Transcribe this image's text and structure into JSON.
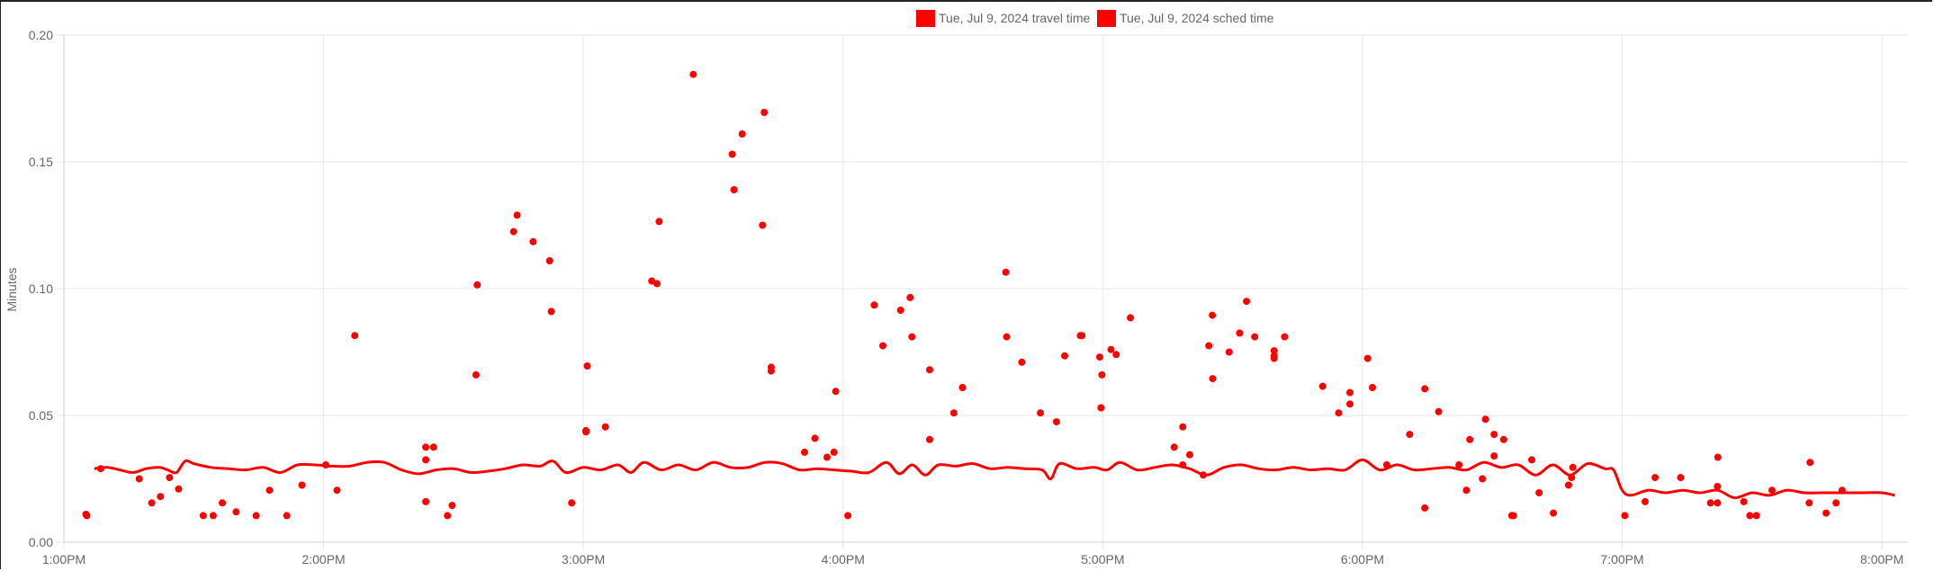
{
  "chart_data": {
    "type": "scatter",
    "title": "",
    "xlabel": "",
    "ylabel": "Minutes",
    "x_domain_minutes": [
      780,
      1206
    ],
    "ylim": [
      0,
      0.2
    ],
    "x_ticks": [
      {
        "label": "1:00PM",
        "value": 780
      },
      {
        "label": "2:00PM",
        "value": 840
      },
      {
        "label": "3:00PM",
        "value": 900
      },
      {
        "label": "4:00PM",
        "value": 960
      },
      {
        "label": "5:00PM",
        "value": 1020
      },
      {
        "label": "6:00PM",
        "value": 1080
      },
      {
        "label": "7:00PM",
        "value": 1140
      },
      {
        "label": "8:00PM",
        "value": 1200
      }
    ],
    "y_ticks": [
      "0.00",
      "0.05",
      "0.10",
      "0.15",
      "0.20"
    ],
    "y_tick_values": [
      0,
      0.05,
      0.1,
      0.15,
      0.2
    ],
    "grid": true,
    "legend_position": "top-center",
    "series": [
      {
        "name": "Tue, Jul 9, 2024 travel time",
        "color": "#ff0000",
        "kind": "points",
        "points": [
          [
            785.1,
            0.011
          ],
          [
            785.3,
            0.0105
          ],
          [
            788.5,
            0.029
          ],
          [
            797.4,
            0.025
          ],
          [
            800.3,
            0.0155
          ],
          [
            802.3,
            0.018
          ],
          [
            804.4,
            0.0255
          ],
          [
            806.5,
            0.021
          ],
          [
            812.2,
            0.0105
          ],
          [
            814.5,
            0.0105
          ],
          [
            816.6,
            0.0155
          ],
          [
            819.8,
            0.012
          ],
          [
            824.4,
            0.0105
          ],
          [
            827.5,
            0.0205
          ],
          [
            831.5,
            0.0105
          ],
          [
            835.0,
            0.0225
          ],
          [
            840.5,
            0.0305
          ],
          [
            843.1,
            0.0205
          ],
          [
            847.2,
            0.0815
          ],
          [
            863.6,
            0.016
          ],
          [
            863.6,
            0.0325
          ],
          [
            863.6,
            0.0375
          ],
          [
            865.4,
            0.0375
          ],
          [
            868.6,
            0.0105
          ],
          [
            869.7,
            0.0145
          ],
          [
            875.2,
            0.066
          ],
          [
            875.5,
            0.1015
          ],
          [
            883.9,
            0.1225
          ],
          [
            884.7,
            0.129
          ],
          [
            888.4,
            0.1185
          ],
          [
            892.2,
            0.111
          ],
          [
            892.6,
            0.091
          ],
          [
            897.3,
            0.0155
          ],
          [
            900.6,
            0.0435
          ],
          [
            900.6,
            0.044
          ],
          [
            900.9,
            0.0695
          ],
          [
            905.1,
            0.0455
          ],
          [
            915.8,
            0.103
          ],
          [
            917.0,
            0.102
          ],
          [
            917.5,
            0.1265
          ],
          [
            925.4,
            0.1845
          ],
          [
            934.4,
            0.153
          ],
          [
            934.8,
            0.139
          ],
          [
            936.7,
            0.161
          ],
          [
            941.4,
            0.125
          ],
          [
            941.8,
            0.1695
          ],
          [
            943.4,
            0.0675
          ],
          [
            943.4,
            0.069
          ],
          [
            951.1,
            0.0355
          ],
          [
            953.5,
            0.041
          ],
          [
            956.3,
            0.0335
          ],
          [
            957.9,
            0.0355
          ],
          [
            958.3,
            0.0595
          ],
          [
            961.1,
            0.0105
          ],
          [
            967.2,
            0.0935
          ],
          [
            969.2,
            0.0775
          ],
          [
            973.3,
            0.0915
          ],
          [
            975.5,
            0.0965
          ],
          [
            975.9,
            0.081
          ],
          [
            980.0,
            0.0405
          ],
          [
            980.0,
            0.068
          ],
          [
            985.6,
            0.051
          ],
          [
            987.6,
            0.061
          ],
          [
            997.6,
            0.1065
          ],
          [
            997.8,
            0.081
          ],
          [
            1001.3,
            0.071
          ],
          [
            1005.6,
            0.051
          ],
          [
            1009.3,
            0.0475
          ],
          [
            1011.2,
            0.0735
          ],
          [
            1014.8,
            0.0815
          ],
          [
            1015.2,
            0.0815
          ],
          [
            1019.3,
            0.073
          ],
          [
            1019.6,
            0.053
          ],
          [
            1019.8,
            0.066
          ],
          [
            1021.9,
            0.076
          ],
          [
            1023.1,
            0.074
          ],
          [
            1026.4,
            0.0885
          ],
          [
            1036.5,
            0.0375
          ],
          [
            1038.5,
            0.0305
          ],
          [
            1038.5,
            0.0455
          ],
          [
            1040.1,
            0.0345
          ],
          [
            1043.2,
            0.0265
          ],
          [
            1044.5,
            0.0775
          ],
          [
            1045.3,
            0.0895
          ],
          [
            1045.4,
            0.0645
          ],
          [
            1049.2,
            0.075
          ],
          [
            1051.6,
            0.0825
          ],
          [
            1053.2,
            0.095
          ],
          [
            1055.1,
            0.081
          ],
          [
            1059.6,
            0.0735
          ],
          [
            1059.6,
            0.0755
          ],
          [
            1059.6,
            0.0725
          ],
          [
            1062.0,
            0.081
          ],
          [
            1070.8,
            0.0615
          ],
          [
            1074.5,
            0.051
          ],
          [
            1077.1,
            0.059
          ],
          [
            1077.1,
            0.0545
          ],
          [
            1081.2,
            0.0725
          ],
          [
            1082.3,
            0.061
          ],
          [
            1085.6,
            0.0305
          ],
          [
            1090.9,
            0.0425
          ],
          [
            1094.4,
            0.0605
          ],
          [
            1094.4,
            0.0135
          ],
          [
            1097.6,
            0.0515
          ],
          [
            1102.3,
            0.0305
          ],
          [
            1104.0,
            0.0205
          ],
          [
            1104.8,
            0.0405
          ],
          [
            1107.7,
            0.025
          ],
          [
            1108.4,
            0.0485
          ],
          [
            1110.4,
            0.034
          ],
          [
            1110.4,
            0.0425
          ],
          [
            1112.6,
            0.0405
          ],
          [
            1114.5,
            0.0105
          ],
          [
            1114.9,
            0.0105
          ],
          [
            1119.1,
            0.0325
          ],
          [
            1120.8,
            0.0195
          ],
          [
            1124.1,
            0.0115
          ],
          [
            1127.6,
            0.0225
          ],
          [
            1128.3,
            0.0255
          ],
          [
            1128.6,
            0.0295
          ],
          [
            1140.6,
            0.0105
          ],
          [
            1145.3,
            0.016
          ],
          [
            1147.6,
            0.0255
          ],
          [
            1153.5,
            0.0255
          ],
          [
            1160.4,
            0.0155
          ],
          [
            1162.0,
            0.0155
          ],
          [
            1162.0,
            0.022
          ],
          [
            1162.1,
            0.0335
          ],
          [
            1168.1,
            0.016
          ],
          [
            1169.5,
            0.0105
          ],
          [
            1171.0,
            0.0105
          ],
          [
            1174.6,
            0.0205
          ],
          [
            1183.2,
            0.0155
          ],
          [
            1183.4,
            0.0315
          ],
          [
            1187.1,
            0.0115
          ],
          [
            1189.4,
            0.0155
          ],
          [
            1190.8,
            0.0205
          ]
        ]
      },
      {
        "name": "Tue, Jul 9, 2024 sched time",
        "color": "#ff0000",
        "kind": "line",
        "points": [
          [
            787,
            0.029
          ],
          [
            790,
            0.0295
          ],
          [
            793,
            0.0285
          ],
          [
            796,
            0.0275
          ],
          [
            799,
            0.029
          ],
          [
            802,
            0.0295
          ],
          [
            804,
            0.0285
          ],
          [
            806,
            0.0275
          ],
          [
            808,
            0.032
          ],
          [
            810,
            0.031
          ],
          [
            814,
            0.0295
          ],
          [
            818,
            0.029
          ],
          [
            822,
            0.0285
          ],
          [
            826,
            0.0295
          ],
          [
            830,
            0.0275
          ],
          [
            834,
            0.0305
          ],
          [
            838,
            0.0305
          ],
          [
            842,
            0.03
          ],
          [
            846,
            0.03
          ],
          [
            850,
            0.0315
          ],
          [
            854,
            0.0315
          ],
          [
            858,
            0.0285
          ],
          [
            862,
            0.027
          ],
          [
            866,
            0.0285
          ],
          [
            870,
            0.029
          ],
          [
            874,
            0.0275
          ],
          [
            878,
            0.028
          ],
          [
            882,
            0.029
          ],
          [
            886,
            0.0305
          ],
          [
            890,
            0.03
          ],
          [
            893,
            0.032
          ],
          [
            896,
            0.0275
          ],
          [
            900,
            0.0295
          ],
          [
            904,
            0.0285
          ],
          [
            908,
            0.0305
          ],
          [
            911,
            0.0275
          ],
          [
            914,
            0.0315
          ],
          [
            918,
            0.0285
          ],
          [
            922,
            0.0305
          ],
          [
            926,
            0.0285
          ],
          [
            930,
            0.0315
          ],
          [
            934,
            0.0295
          ],
          [
            938,
            0.0295
          ],
          [
            942,
            0.0315
          ],
          [
            946,
            0.031
          ],
          [
            950,
            0.0285
          ],
          [
            954,
            0.029
          ],
          [
            958,
            0.0285
          ],
          [
            962,
            0.028
          ],
          [
            966,
            0.0275
          ],
          [
            970,
            0.0315
          ],
          [
            973,
            0.027
          ],
          [
            976,
            0.0305
          ],
          [
            979,
            0.0265
          ],
          [
            982,
            0.0305
          ],
          [
            986,
            0.03
          ],
          [
            990,
            0.031
          ],
          [
            994,
            0.029
          ],
          [
            998,
            0.0295
          ],
          [
            1002,
            0.029
          ],
          [
            1006,
            0.0285
          ],
          [
            1008,
            0.025
          ],
          [
            1010,
            0.031
          ],
          [
            1014,
            0.029
          ],
          [
            1018,
            0.0295
          ],
          [
            1021,
            0.0285
          ],
          [
            1024,
            0.0315
          ],
          [
            1028,
            0.0285
          ],
          [
            1032,
            0.0295
          ],
          [
            1036,
            0.0305
          ],
          [
            1040,
            0.029
          ],
          [
            1044,
            0.0265
          ],
          [
            1048,
            0.0295
          ],
          [
            1052,
            0.0305
          ],
          [
            1056,
            0.029
          ],
          [
            1060,
            0.0285
          ],
          [
            1064,
            0.0295
          ],
          [
            1068,
            0.0285
          ],
          [
            1072,
            0.029
          ],
          [
            1076,
            0.0285
          ],
          [
            1080,
            0.0325
          ],
          [
            1084,
            0.0285
          ],
          [
            1088,
            0.0305
          ],
          [
            1092,
            0.0285
          ],
          [
            1096,
            0.029
          ],
          [
            1100,
            0.0295
          ],
          [
            1104,
            0.0285
          ],
          [
            1108,
            0.0315
          ],
          [
            1112,
            0.0295
          ],
          [
            1116,
            0.0305
          ],
          [
            1120,
            0.0265
          ],
          [
            1124,
            0.0305
          ],
          [
            1128,
            0.0265
          ],
          [
            1132,
            0.031
          ],
          [
            1136,
            0.029
          ],
          [
            1138,
            0.0285
          ],
          [
            1140,
            0.0205
          ],
          [
            1142,
            0.0185
          ],
          [
            1146,
            0.0205
          ],
          [
            1150,
            0.0195
          ],
          [
            1154,
            0.0205
          ],
          [
            1158,
            0.0195
          ],
          [
            1162,
            0.0205
          ],
          [
            1166,
            0.0175
          ],
          [
            1170,
            0.0195
          ],
          [
            1174,
            0.0185
          ],
          [
            1178,
            0.0205
          ],
          [
            1182,
            0.0195
          ],
          [
            1186,
            0.0195
          ],
          [
            1190,
            0.0195
          ],
          [
            1195,
            0.0195
          ],
          [
            1200,
            0.0195
          ],
          [
            1203,
            0.0185
          ]
        ]
      }
    ]
  }
}
